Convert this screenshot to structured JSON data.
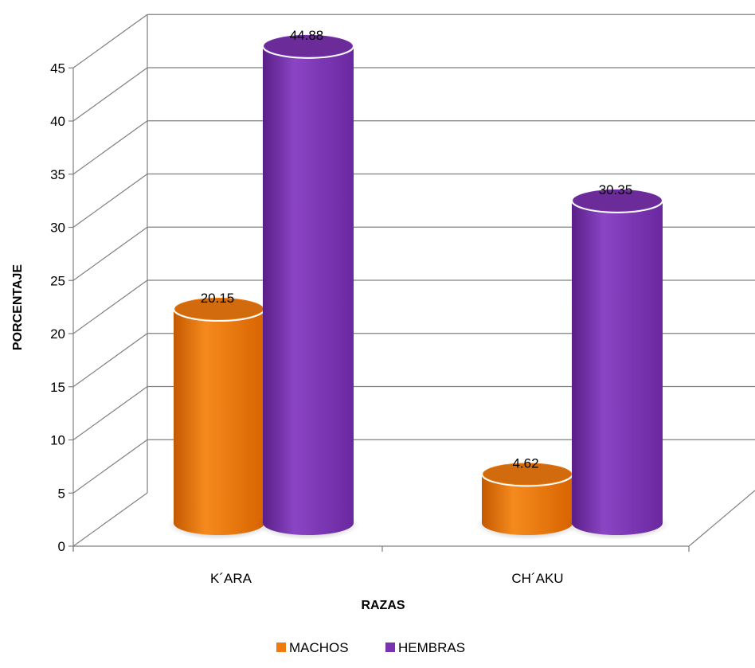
{
  "chart_data": {
    "type": "bar",
    "title": "",
    "xlabel": "RAZAS",
    "ylabel": "PORCENTAJE",
    "categories": [
      "K´ARA",
      "CH´AKU"
    ],
    "series": [
      {
        "name": "MACHOS",
        "values": [
          20.15,
          4.62
        ],
        "color": "#f07a10"
      },
      {
        "name": "HEMBRAS",
        "values": [
          44.88,
          30.35
        ],
        "color": "#7a33b0"
      }
    ],
    "ylim": [
      0,
      45
    ],
    "yticks": [
      "0",
      "5",
      "10",
      "15",
      "20",
      "25",
      "30",
      "35",
      "40",
      "45"
    ],
    "data_labels": [
      [
        "20.15",
        "4.62"
      ],
      [
        "44.88",
        "30.35"
      ]
    ],
    "grid": true,
    "legend_position": "bottom",
    "style": "3d-cylinder"
  }
}
